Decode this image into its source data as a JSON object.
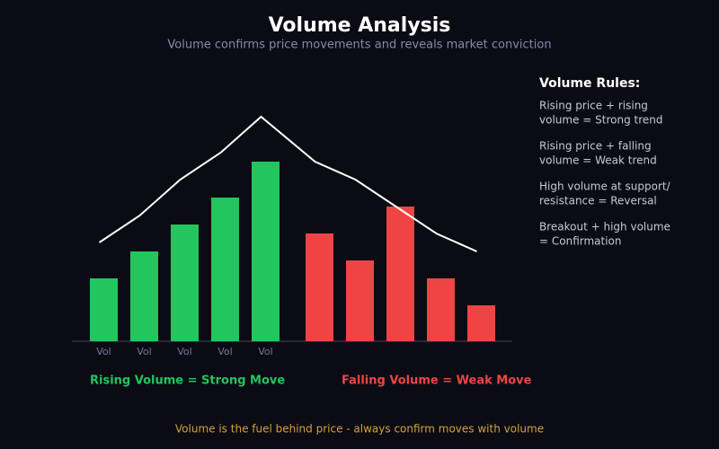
{
  "chart_data": {
    "type": "bar",
    "title": "Volume Analysis",
    "subtitle": "Volume confirms price movements and reveals market conviction",
    "categories": [
      "Vol",
      "Vol",
      "Vol",
      "Vol",
      "Vol",
      null,
      null,
      null,
      null,
      null
    ],
    "ylim": [
      0,
      250
    ],
    "series": [
      {
        "type": "bar",
        "values": [
          70,
          100,
          130,
          160,
          200,
          120,
          90,
          150,
          70,
          40
        ],
        "colors": [
          "#22c55e",
          "#22c55e",
          "#22c55e",
          "#22c55e",
          "#22c55e",
          "#ef4444",
          "#ef4444",
          "#ef4444",
          "#ef4444",
          "#ef4444"
        ]
      },
      {
        "type": "line",
        "color": "#ffffff",
        "values": [
          110,
          140,
          180,
          210,
          250,
          200,
          180,
          150,
          120,
          100
        ]
      }
    ],
    "annotations": [
      {
        "text": "Rising Volume = Strong Move",
        "color": "#22c55e"
      },
      {
        "text": "Falling Volume = Weak Move",
        "color": "#ef4444"
      }
    ],
    "rules_title": "Volume Rules:",
    "rules": [
      [
        "Rising price + rising",
        "volume = Strong trend"
      ],
      [
        "Rising price + falling",
        "volume = Weak trend"
      ],
      [
        "High volume at support/",
        "resistance = Reversal"
      ],
      [
        "Breakout + high volume",
        "= Confirmation"
      ]
    ],
    "footer": "Volume is the fuel behind price - always confirm moves with volume"
  }
}
